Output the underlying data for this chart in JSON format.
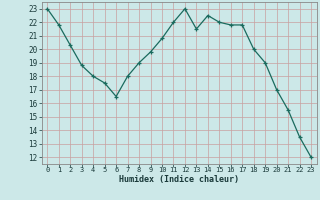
{
  "x": [
    0,
    1,
    2,
    3,
    4,
    5,
    6,
    7,
    8,
    9,
    10,
    11,
    12,
    13,
    14,
    15,
    16,
    17,
    18,
    19,
    20,
    21,
    22,
    23
  ],
  "y": [
    23,
    21.8,
    20.3,
    18.8,
    18.0,
    17.5,
    16.5,
    18.0,
    19.0,
    19.8,
    20.8,
    22.0,
    23.0,
    21.5,
    22.5,
    22.0,
    21.8,
    21.8,
    20.0,
    19.0,
    17.0,
    15.5,
    13.5,
    12.0
  ],
  "line_color": "#1a6b5e",
  "marker": "+",
  "bg_color": "#cce8e8",
  "grid_color_major": "#c8a0a0",
  "grid_color_minor": "#d8b8b8",
  "xlabel": "Humidex (Indice chaleur)",
  "ylabel_ticks": [
    12,
    13,
    14,
    15,
    16,
    17,
    18,
    19,
    20,
    21,
    22,
    23
  ],
  "xtick_labels": [
    "0",
    "1",
    "2",
    "3",
    "4",
    "5",
    "6",
    "7",
    "8",
    "9",
    "10",
    "11",
    "12",
    "13",
    "14",
    "15",
    "16",
    "17",
    "18",
    "19",
    "20",
    "21",
    "22",
    "23"
  ],
  "xlim": [
    -0.5,
    23.5
  ],
  "ylim": [
    11.5,
    23.5
  ],
  "spine_color": "#888888"
}
